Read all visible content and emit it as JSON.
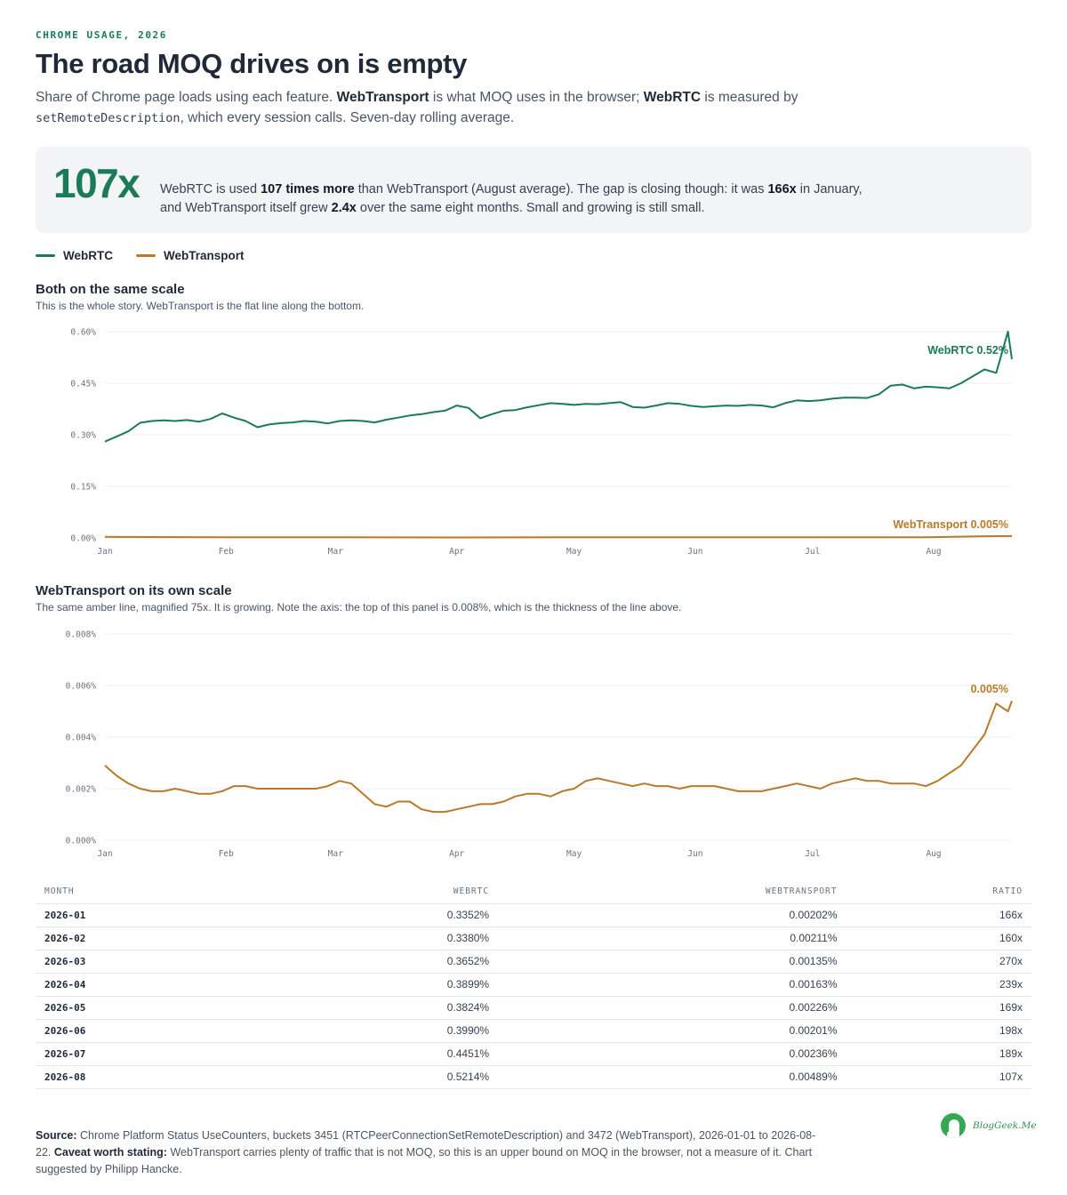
{
  "header": {
    "eyebrow": "CHROME USAGE, 2026",
    "title": "The road MOQ drives on is empty",
    "sub_1": "Share of Chrome page loads using each feature. ",
    "sub_b1": "WebTransport",
    "sub_2": " is what MOQ uses in the browser; ",
    "sub_b2": "WebRTC",
    "sub_3": " is measured by ",
    "sub_code": "setRemoteDescription",
    "sub_4": ", which every session calls. Seven-day rolling average."
  },
  "callout": {
    "big_number": "107x",
    "t1": "WebRTC is used ",
    "b1": "107 times more",
    "t2": " than WebTransport (August average). The gap is closing though: it was ",
    "b2": "166x",
    "t3": " in January, and WebTransport itself grew ",
    "b3": "2.4x",
    "t4": " over the same eight months. Small and growing is still small."
  },
  "legend": [
    {
      "label": "WebRTC",
      "color": "#1b7a57"
    },
    {
      "label": "WebTransport",
      "color": "#b87a2a"
    }
  ],
  "colors": {
    "webrtc": "#1b7a57",
    "webtransport": "#b87a2a"
  },
  "panels": {
    "top": {
      "title": "Both on the same scale",
      "subtitle": "This is the whole story. WebTransport is the flat line along the bottom."
    },
    "bottom": {
      "title": "WebTransport on its own scale",
      "subtitle": "The same amber line, magnified 75x. It is growing. Note the axis: the top of this panel is 0.008%, which is the thickness of the line above."
    }
  },
  "chart_data": [
    {
      "type": "line",
      "title": "Both on the same scale",
      "ylim": [
        0,
        0.6
      ],
      "y_ticks": [
        0,
        0.15,
        0.3,
        0.45,
        0.6
      ],
      "y_tick_labels": [
        "0.00%",
        "0.15%",
        "0.30%",
        "0.45%",
        "0.60%"
      ],
      "x_range": [
        0,
        232
      ],
      "x_ticks": [
        0,
        31,
        59,
        90,
        120,
        151,
        181,
        212
      ],
      "x_tick_labels": [
        "Jan",
        "Feb",
        "Mar",
        "Apr",
        "May",
        "Jun",
        "Jul",
        "Aug"
      ],
      "grid": true,
      "end_labels": [
        "WebRTC 0.52%",
        "WebTransport 0.005%"
      ],
      "series": [
        {
          "name": "WebRTC",
          "x": [
            0,
            3,
            6,
            9,
            12,
            15,
            18,
            21,
            24,
            27,
            30,
            33,
            36,
            39,
            42,
            45,
            48,
            51,
            54,
            57,
            60,
            63,
            66,
            69,
            72,
            75,
            78,
            81,
            84,
            87,
            90,
            93,
            96,
            99,
            102,
            105,
            108,
            111,
            114,
            117,
            120,
            123,
            126,
            129,
            132,
            135,
            138,
            141,
            144,
            147,
            150,
            153,
            156,
            159,
            162,
            165,
            168,
            171,
            174,
            177,
            180,
            183,
            186,
            189,
            192,
            195,
            198,
            201,
            204,
            207,
            210,
            213,
            216,
            219,
            222,
            225,
            228,
            231,
            232
          ],
          "y": [
            0.28,
            0.295,
            0.31,
            0.335,
            0.34,
            0.342,
            0.34,
            0.343,
            0.338,
            0.346,
            0.362,
            0.35,
            0.34,
            0.322,
            0.33,
            0.334,
            0.336,
            0.34,
            0.338,
            0.333,
            0.34,
            0.342,
            0.34,
            0.336,
            0.344,
            0.35,
            0.356,
            0.36,
            0.366,
            0.37,
            0.385,
            0.378,
            0.348,
            0.36,
            0.37,
            0.372,
            0.38,
            0.386,
            0.392,
            0.39,
            0.387,
            0.39,
            0.389,
            0.392,
            0.395,
            0.381,
            0.379,
            0.385,
            0.392,
            0.39,
            0.384,
            0.381,
            0.383,
            0.385,
            0.384,
            0.387,
            0.385,
            0.38,
            0.392,
            0.4,
            0.398,
            0.4,
            0.405,
            0.408,
            0.408,
            0.407,
            0.418,
            0.443,
            0.446,
            0.435,
            0.44,
            0.438,
            0.435,
            0.45,
            0.47,
            0.49,
            0.48,
            0.6,
            0.52
          ]
        },
        {
          "name": "WebTransport",
          "x": [
            0,
            30,
            60,
            90,
            120,
            150,
            180,
            210,
            225,
            232
          ],
          "y": [
            0.003,
            0.002,
            0.002,
            0.0012,
            0.002,
            0.002,
            0.002,
            0.002,
            0.005,
            0.0054
          ]
        }
      ]
    },
    {
      "type": "line",
      "title": "WebTransport on its own scale",
      "ylim": [
        0,
        0.008
      ],
      "y_ticks": [
        0,
        0.002,
        0.004,
        0.006,
        0.008
      ],
      "y_tick_labels": [
        "0.000%",
        "0.002%",
        "0.004%",
        "0.006%",
        "0.008%"
      ],
      "x_range": [
        0,
        232
      ],
      "x_ticks": [
        0,
        31,
        59,
        90,
        120,
        151,
        181,
        212
      ],
      "x_tick_labels": [
        "Jan",
        "Feb",
        "Mar",
        "Apr",
        "May",
        "Jun",
        "Jul",
        "Aug"
      ],
      "grid": true,
      "end_labels": [
        "0.005%"
      ],
      "series": [
        {
          "name": "WebTransport",
          "x": [
            0,
            3,
            6,
            9,
            12,
            15,
            18,
            21,
            24,
            27,
            30,
            33,
            36,
            39,
            42,
            45,
            48,
            51,
            54,
            57,
            60,
            63,
            66,
            69,
            72,
            75,
            78,
            81,
            84,
            87,
            90,
            93,
            96,
            99,
            102,
            105,
            108,
            111,
            114,
            117,
            120,
            123,
            126,
            129,
            132,
            135,
            138,
            141,
            144,
            147,
            150,
            153,
            156,
            159,
            162,
            165,
            168,
            171,
            174,
            177,
            180,
            183,
            186,
            189,
            192,
            195,
            198,
            201,
            204,
            207,
            210,
            213,
            216,
            219,
            222,
            225,
            228,
            231,
            232
          ],
          "y": [
            0.0029,
            0.0025,
            0.0022,
            0.002,
            0.0019,
            0.0019,
            0.002,
            0.0019,
            0.0018,
            0.0018,
            0.0019,
            0.0021,
            0.0021,
            0.002,
            0.002,
            0.002,
            0.002,
            0.002,
            0.002,
            0.0021,
            0.0023,
            0.0022,
            0.0018,
            0.0014,
            0.0013,
            0.0015,
            0.0015,
            0.0012,
            0.0011,
            0.0011,
            0.0012,
            0.0013,
            0.0014,
            0.0014,
            0.0015,
            0.0017,
            0.0018,
            0.0018,
            0.0017,
            0.0019,
            0.002,
            0.0023,
            0.0024,
            0.0023,
            0.0022,
            0.0021,
            0.0022,
            0.0021,
            0.0021,
            0.002,
            0.0021,
            0.0021,
            0.0021,
            0.002,
            0.0019,
            0.0019,
            0.0019,
            0.002,
            0.0021,
            0.0022,
            0.0021,
            0.002,
            0.0022,
            0.0023,
            0.0024,
            0.0023,
            0.0023,
            0.0022,
            0.0022,
            0.0022,
            0.0021,
            0.0023,
            0.0026,
            0.0029,
            0.0035,
            0.0041,
            0.0053,
            0.005,
            0.0054
          ]
        }
      ]
    }
  ],
  "table": {
    "headers": [
      "MONTH",
      "WEBRTC",
      "WEBTRANSPORT",
      "RATIO"
    ],
    "rows": [
      [
        "2026-01",
        "0.3352%",
        "0.00202%",
        "166x"
      ],
      [
        "2026-02",
        "0.3380%",
        "0.00211%",
        "160x"
      ],
      [
        "2026-03",
        "0.3652%",
        "0.00135%",
        "270x"
      ],
      [
        "2026-04",
        "0.3899%",
        "0.00163%",
        "239x"
      ],
      [
        "2026-05",
        "0.3824%",
        "0.00226%",
        "169x"
      ],
      [
        "2026-06",
        "0.3990%",
        "0.00201%",
        "198x"
      ],
      [
        "2026-07",
        "0.4451%",
        "0.00236%",
        "189x"
      ],
      [
        "2026-08",
        "0.5214%",
        "0.00489%",
        "107x"
      ]
    ]
  },
  "footer": {
    "b1": "Source:",
    "t1": " Chrome Platform Status UseCounters, buckets 3451 (RTCPeerConnectionSetRemoteDescription) and 3472 (WebTransport), 2026-01-01 to 2026-08-22. ",
    "b2": "Caveat worth stating:",
    "t2": " WebTransport carries plenty of traffic that is not MOQ, so this is an upper bound on MOQ in the browser, not a measure of it. Chart suggested by Philipp Hancke."
  },
  "logo": {
    "text": "BlogGeek.Me",
    "icon": "person-head-icon"
  }
}
